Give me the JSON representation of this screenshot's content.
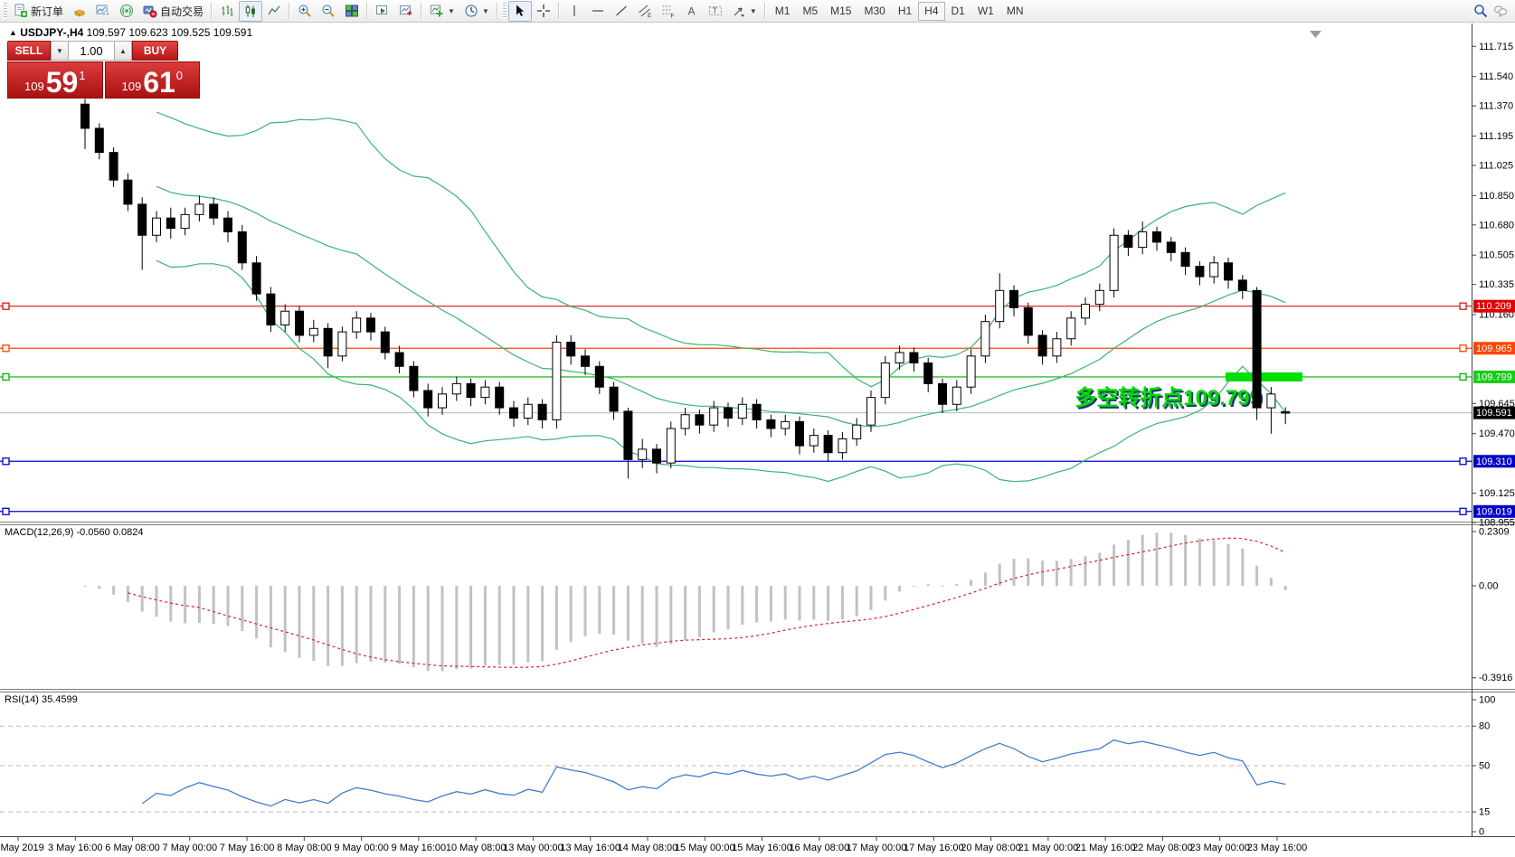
{
  "toolbar": {
    "new_order": "新订单",
    "autotrade": "自动交易",
    "timeframes": [
      "M1",
      "M5",
      "M15",
      "M30",
      "H1",
      "H4",
      "D1",
      "W1",
      "MN"
    ],
    "active_timeframe": "H4"
  },
  "chart": {
    "marker": "▲",
    "symbol": "USDJPY-,H4",
    "ohlc": "109.597 109.623 109.525 109.591"
  },
  "trade": {
    "sell_label": "SELL",
    "buy_label": "BUY",
    "volume": "1.00",
    "spin_down": "▼",
    "spin_up": "▲",
    "sell": {
      "prefix": "109",
      "big": "59",
      "sup": "1"
    },
    "buy": {
      "prefix": "109",
      "big": "61",
      "sup": "0"
    }
  },
  "indicators": {
    "macd_label": "MACD(12,26,9) -0.0560 0.0824",
    "rsi_label": "RSI(14) 35.4599"
  },
  "annotation": {
    "text": "多空转折点109.799",
    "color": "#00d800",
    "shadow": "#1b3a75"
  },
  "chart_data": {
    "type": "candlestick",
    "symbol": "USDJPY",
    "timeframe": "H4",
    "title": "USDJPY-,H4",
    "x_labels": [
      "3 May 2019",
      "3 May 16:00",
      "6 May 08:00",
      "7 May 00:00",
      "7 May 16:00",
      "8 May 08:00",
      "9 May 00:00",
      "9 May 16:00",
      "10 May 08:00",
      "13 May 00:00",
      "13 May 16:00",
      "14 May 08:00",
      "15 May 00:00",
      "15 May 16:00",
      "16 May 08:00",
      "17 May 00:00",
      "17 May 16:00",
      "20 May 08:00",
      "21 May 00:00",
      "21 May 16:00",
      "22 May 08:00",
      "23 May 00:00",
      "23 May 16:00"
    ],
    "price_axis_ticks": [
      111.715,
      111.54,
      111.37,
      111.195,
      111.025,
      110.85,
      110.68,
      110.505,
      110.335,
      110.16,
      109.645,
      109.47,
      109.125,
      108.955
    ],
    "ylim": [
      108.93,
      111.76
    ],
    "candles": [
      [
        111.38,
        111.41,
        111.12,
        111.24
      ],
      [
        111.24,
        111.27,
        111.06,
        111.1
      ],
      [
        111.1,
        111.13,
        110.9,
        110.94
      ],
      [
        110.94,
        110.98,
        110.76,
        110.8
      ],
      [
        110.8,
        110.84,
        110.42,
        110.62
      ],
      [
        110.62,
        110.76,
        110.58,
        110.72
      ],
      [
        110.72,
        110.78,
        110.6,
        110.66
      ],
      [
        110.66,
        110.78,
        110.62,
        110.74
      ],
      [
        110.74,
        110.85,
        110.7,
        110.8
      ],
      [
        110.8,
        110.84,
        110.68,
        110.72
      ],
      [
        110.72,
        110.76,
        110.58,
        110.64
      ],
      [
        110.64,
        110.68,
        110.42,
        110.46
      ],
      [
        110.46,
        110.5,
        110.24,
        110.28
      ],
      [
        110.28,
        110.32,
        110.06,
        110.1
      ],
      [
        110.1,
        110.22,
        110.06,
        110.18
      ],
      [
        110.18,
        110.21,
        110.0,
        110.04
      ],
      [
        110.04,
        110.13,
        110.0,
        110.08
      ],
      [
        110.08,
        110.11,
        109.85,
        109.92
      ],
      [
        109.92,
        110.09,
        109.89,
        110.06
      ],
      [
        110.06,
        110.18,
        110.02,
        110.14
      ],
      [
        110.14,
        110.17,
        110.01,
        110.06
      ],
      [
        110.06,
        110.09,
        109.9,
        109.94
      ],
      [
        109.94,
        109.98,
        109.82,
        109.86
      ],
      [
        109.86,
        109.89,
        109.68,
        109.72
      ],
      [
        109.72,
        109.76,
        109.57,
        109.62
      ],
      [
        109.62,
        109.74,
        109.58,
        109.7
      ],
      [
        109.7,
        109.8,
        109.66,
        109.76
      ],
      [
        109.76,
        109.79,
        109.63,
        109.68
      ],
      [
        109.68,
        109.78,
        109.64,
        109.74
      ],
      [
        109.74,
        109.77,
        109.58,
        109.62
      ],
      [
        109.62,
        109.66,
        109.51,
        109.56
      ],
      [
        109.56,
        109.68,
        109.52,
        109.64
      ],
      [
        109.64,
        109.67,
        109.5,
        109.55
      ],
      [
        109.55,
        110.04,
        109.5,
        110.0
      ],
      [
        110.0,
        110.04,
        109.87,
        109.92
      ],
      [
        109.92,
        109.96,
        109.81,
        109.86
      ],
      [
        109.86,
        109.89,
        109.7,
        109.74
      ],
      [
        109.74,
        109.77,
        109.55,
        109.6
      ],
      [
        109.6,
        109.62,
        109.21,
        109.32
      ],
      [
        109.32,
        109.44,
        109.27,
        109.38
      ],
      [
        109.38,
        109.41,
        109.24,
        109.3
      ],
      [
        109.3,
        109.54,
        109.27,
        109.5
      ],
      [
        109.5,
        109.62,
        109.46,
        109.58
      ],
      [
        109.58,
        109.61,
        109.47,
        109.52
      ],
      [
        109.52,
        109.66,
        109.48,
        109.62
      ],
      [
        109.62,
        109.65,
        109.51,
        109.56
      ],
      [
        109.56,
        109.68,
        109.52,
        109.64
      ],
      [
        109.64,
        109.67,
        109.5,
        109.55
      ],
      [
        109.55,
        109.58,
        109.45,
        109.5
      ],
      [
        109.5,
        109.58,
        109.46,
        109.54
      ],
      [
        109.54,
        109.57,
        109.35,
        109.4
      ],
      [
        109.4,
        109.5,
        109.36,
        109.46
      ],
      [
        109.46,
        109.49,
        109.31,
        109.36
      ],
      [
        109.36,
        109.48,
        109.32,
        109.44
      ],
      [
        109.44,
        109.56,
        109.4,
        109.52
      ],
      [
        109.52,
        109.72,
        109.48,
        109.68
      ],
      [
        109.68,
        109.92,
        109.64,
        109.88
      ],
      [
        109.88,
        109.98,
        109.84,
        109.94
      ],
      [
        109.94,
        109.97,
        109.83,
        109.88
      ],
      [
        109.88,
        109.91,
        109.71,
        109.76
      ],
      [
        109.76,
        109.79,
        109.59,
        109.64
      ],
      [
        109.64,
        109.78,
        109.6,
        109.74
      ],
      [
        109.74,
        109.96,
        109.7,
        109.92
      ],
      [
        109.92,
        110.16,
        109.88,
        110.12
      ],
      [
        110.12,
        110.4,
        110.08,
        110.3
      ],
      [
        110.3,
        110.33,
        110.15,
        110.2
      ],
      [
        110.2,
        110.23,
        109.99,
        110.04
      ],
      [
        110.04,
        110.07,
        109.87,
        109.92
      ],
      [
        109.92,
        110.06,
        109.88,
        110.02
      ],
      [
        110.02,
        110.18,
        109.98,
        110.14
      ],
      [
        110.14,
        110.26,
        110.1,
        110.22
      ],
      [
        110.22,
        110.34,
        110.18,
        110.3
      ],
      [
        110.3,
        110.66,
        110.26,
        110.62
      ],
      [
        110.62,
        110.65,
        110.5,
        110.55
      ],
      [
        110.55,
        110.7,
        110.51,
        110.64
      ],
      [
        110.64,
        110.67,
        110.53,
        110.58
      ],
      [
        110.58,
        110.61,
        110.47,
        110.52
      ],
      [
        110.52,
        110.55,
        110.39,
        110.44
      ],
      [
        110.44,
        110.47,
        110.33,
        110.38
      ],
      [
        110.38,
        110.5,
        110.34,
        110.46
      ],
      [
        110.46,
        110.49,
        110.31,
        110.36
      ],
      [
        110.36,
        110.39,
        110.25,
        110.3
      ],
      [
        110.3,
        110.32,
        109.55,
        109.62
      ],
      [
        109.62,
        109.74,
        109.47,
        109.7
      ],
      [
        109.597,
        109.623,
        109.525,
        109.591
      ]
    ],
    "levels": [
      {
        "price": 110.209,
        "label": "110.209",
        "color": "#dd1111",
        "badge": "#e00000"
      },
      {
        "price": 109.965,
        "label": "109.965",
        "color": "#ff4500",
        "badge": "#ff4500"
      },
      {
        "price": 109.799,
        "label": "109.799",
        "color": "#00b400",
        "badge": "#18cc18"
      },
      {
        "price": 109.31,
        "label": "109.310",
        "color": "#0000d8",
        "badge": "#0000cc"
      },
      {
        "price": 109.019,
        "label": "109.019",
        "color": "#0000d8",
        "badge": "#0000cc"
      }
    ],
    "current_price": {
      "value": 109.591,
      "label": "109.591",
      "badge": "#000000"
    },
    "highlight_level": {
      "price": 109.799,
      "color": "#00e000"
    },
    "bollinger": {
      "period": 20,
      "deviation": 2,
      "color": "#3cb371"
    },
    "macd": {
      "fast": 12,
      "slow": 26,
      "signal": 9,
      "main_value": -0.056,
      "signal_value": 0.0824,
      "axis": [
        {
          "v": 0.2309,
          "t": "0.2309"
        },
        {
          "v": 0,
          "t": "0.00"
        },
        {
          "v": -0.3916,
          "t": "-0.3916"
        }
      ],
      "bar_color": "#c2c2c2",
      "signal_color": "#dd2222"
    },
    "rsi": {
      "period": 14,
      "value": 35.4599,
      "color": "#3f7fd0",
      "axis": [
        {
          "v": 100,
          "t": "100"
        },
        {
          "v": 80,
          "t": "80"
        },
        {
          "v": 50,
          "t": "50"
        },
        {
          "v": 15,
          "t": "15"
        },
        {
          "v": 0,
          "t": "0"
        }
      ],
      "grid_levels": [
        80,
        50,
        15
      ]
    }
  }
}
